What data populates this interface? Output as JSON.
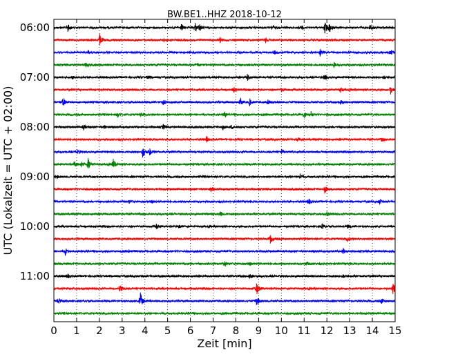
{
  "chart_data": {
    "type": "line",
    "title": "BW.BE1..HHZ 2018-10-12",
    "xlabel": "Zeit  [min]",
    "ylabel": "UTC (Lokalzeit = UTC + 02:00)",
    "xlim": [
      0,
      15
    ],
    "x_ticks": [
      "0",
      "1",
      "2",
      "3",
      "4",
      "5",
      "6",
      "7",
      "8",
      "9",
      "10",
      "11",
      "12",
      "13",
      "14",
      "15"
    ],
    "y_ticks": [
      "06:00",
      "07:00",
      "08:00",
      "09:00",
      "10:00",
      "11:00"
    ],
    "grid": {
      "x": "dotted vertical lines at every minute",
      "y": false
    },
    "trace_colors": [
      "#000000",
      "#ff0000",
      "#0000ff",
      "#008000"
    ],
    "traces": [
      {
        "start": "06:00",
        "events": [
          [
            0.6,
            0.5
          ],
          [
            5.6,
            0.4
          ],
          [
            6.2,
            0.6
          ],
          [
            6.4,
            0.4
          ],
          [
            9.6,
            0.3
          ],
          [
            10.9,
            0.2
          ],
          [
            11.9,
            0.8
          ],
          [
            12.1,
            0.6
          ],
          [
            13.9,
            0.4
          ]
        ]
      },
      {
        "start": "06:15",
        "events": [
          [
            2.0,
            0.8
          ],
          [
            4.8,
            0.2
          ],
          [
            7.3,
            0.3
          ],
          [
            9.3,
            0.3
          ]
        ]
      },
      {
        "start": "06:30",
        "events": [
          [
            1.5,
            0.2
          ],
          [
            9.7,
            0.2
          ],
          [
            11.7,
            0.4
          ],
          [
            14.8,
            0.3
          ]
        ]
      },
      {
        "start": "06:45",
        "events": [
          [
            1.4,
            0.3
          ],
          [
            6.3,
            0.2
          ],
          [
            12.3,
            0.3
          ]
        ]
      },
      {
        "start": "07:00",
        "events": [
          [
            0.8,
            0.2
          ],
          [
            4.1,
            0.2
          ],
          [
            8.5,
            0.4
          ],
          [
            11.9,
            0.4
          ],
          [
            14.5,
            0.2
          ]
        ]
      },
      {
        "start": "07:15",
        "events": [
          [
            7.9,
            0.3
          ],
          [
            10.0,
            0.2
          ],
          [
            12.6,
            0.3
          ],
          [
            14.8,
            0.5
          ]
        ]
      },
      {
        "start": "07:30",
        "events": [
          [
            0.4,
            0.8
          ],
          [
            4.8,
            0.3
          ],
          [
            8.2,
            0.4
          ],
          [
            8.6,
            0.4
          ],
          [
            9.4,
            0.3
          ],
          [
            12.6,
            0.3
          ]
        ]
      },
      {
        "start": "07:45",
        "events": [
          [
            2.8,
            0.3
          ],
          [
            3.8,
            0.3
          ],
          [
            7.5,
            0.3
          ],
          [
            11.0,
            0.4
          ],
          [
            11.3,
            0.3
          ]
        ]
      },
      {
        "start": "08:00",
        "events": [
          [
            1.3,
            0.3
          ],
          [
            2.2,
            0.2
          ],
          [
            4.8,
            0.3
          ],
          [
            7.4,
            0.4
          ],
          [
            7.8,
            0.2
          ]
        ]
      },
      {
        "start": "08:15",
        "events": [
          [
            6.7,
            0.3
          ],
          [
            10.7,
            0.2
          ],
          [
            14.4,
            0.2
          ]
        ]
      },
      {
        "start": "08:30",
        "events": [
          [
            1.0,
            0.3
          ],
          [
            3.9,
            0.8
          ],
          [
            4.2,
            0.4
          ],
          [
            10.0,
            0.3
          ]
        ]
      },
      {
        "start": "08:45",
        "events": [
          [
            0.9,
            0.4
          ],
          [
            1.2,
            0.4
          ],
          [
            1.5,
            0.7
          ],
          [
            2.6,
            0.7
          ]
        ]
      },
      {
        "start": "09:00",
        "events": [
          [
            0.1,
            0.2
          ],
          [
            6.4,
            0.2
          ],
          [
            10.8,
            0.4
          ]
        ]
      },
      {
        "start": "09:15",
        "events": [
          [
            6.9,
            0.3
          ],
          [
            11.9,
            0.5
          ]
        ]
      },
      {
        "start": "09:30",
        "events": [
          [
            3.3,
            0.2
          ],
          [
            4.3,
            0.2
          ],
          [
            11.2,
            0.4
          ],
          [
            14.3,
            0.3
          ]
        ]
      },
      {
        "start": "09:45",
        "events": [
          [
            7.3,
            0.4
          ],
          [
            12.0,
            0.2
          ]
        ]
      },
      {
        "start": "10:00",
        "events": [
          [
            4.5,
            0.3
          ],
          [
            5.5,
            0.2
          ],
          [
            11.8,
            0.3
          ],
          [
            12.9,
            0.2
          ]
        ]
      },
      {
        "start": "10:15",
        "events": [
          [
            9.5,
            0.6
          ],
          [
            12.9,
            0.3
          ]
        ]
      },
      {
        "start": "10:30",
        "events": [
          [
            0.5,
            0.4
          ],
          [
            3.3,
            0.2
          ],
          [
            12.7,
            0.4
          ]
        ]
      },
      {
        "start": "10:45",
        "events": [
          [
            7.5,
            0.4
          ],
          [
            8.6,
            0.2
          ],
          [
            11.1,
            0.2
          ]
        ]
      },
      {
        "start": "11:00",
        "events": [
          [
            0.6,
            0.3
          ],
          [
            8.6,
            0.4
          ],
          [
            12.7,
            0.2
          ]
        ]
      },
      {
        "start": "11:15",
        "events": [
          [
            2.9,
            0.7
          ],
          [
            8.9,
            0.9
          ],
          [
            14.9,
            0.6
          ]
        ]
      },
      {
        "start": "11:30",
        "events": [
          [
            0.2,
            0.3
          ],
          [
            3.8,
            1.0
          ],
          [
            8.9,
            0.7
          ],
          [
            14.4,
            0.3
          ]
        ]
      },
      {
        "start": "11:45",
        "events": []
      }
    ]
  }
}
